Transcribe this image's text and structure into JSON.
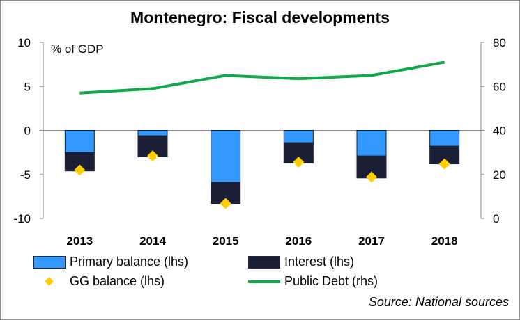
{
  "chart_data": {
    "type": "bar",
    "title": "Montenegro: Fiscal developments",
    "ylabel": "% of GDP",
    "categories": [
      "2013",
      "2014",
      "2015",
      "2016",
      "2017",
      "2018"
    ],
    "ylim": [
      -10,
      10
    ],
    "yticks": [
      "10",
      "5",
      "0",
      "-5",
      "-10"
    ],
    "y2lim": [
      0,
      80
    ],
    "y2ticks": [
      "80",
      "60",
      "40",
      "20",
      "0"
    ],
    "series": [
      {
        "name": "Primary balance (lhs)",
        "type": "bar",
        "axis": "left",
        "color": "#3399ff",
        "values": [
          -2.5,
          -0.6,
          -5.9,
          -1.4,
          -2.9,
          -1.8
        ]
      },
      {
        "name": "Interest (lhs)",
        "type": "bar",
        "axis": "left",
        "color": "#1a1f36",
        "values": [
          -2.1,
          -2.4,
          -2.4,
          -2.3,
          -2.5,
          -2.0
        ]
      },
      {
        "name": "GG balance (lhs)",
        "type": "scatter",
        "axis": "left",
        "color": "#ffcc00",
        "values": [
          -4.5,
          -2.9,
          -8.3,
          -3.6,
          -5.3,
          -3.8
        ]
      },
      {
        "name": "Public Debt (rhs)",
        "type": "line",
        "axis": "right",
        "color": "#11a84a",
        "values": [
          57,
          59,
          65,
          63.5,
          65,
          71
        ]
      }
    ],
    "grid": false,
    "legend": "bottom",
    "source": "Source: National sources"
  }
}
